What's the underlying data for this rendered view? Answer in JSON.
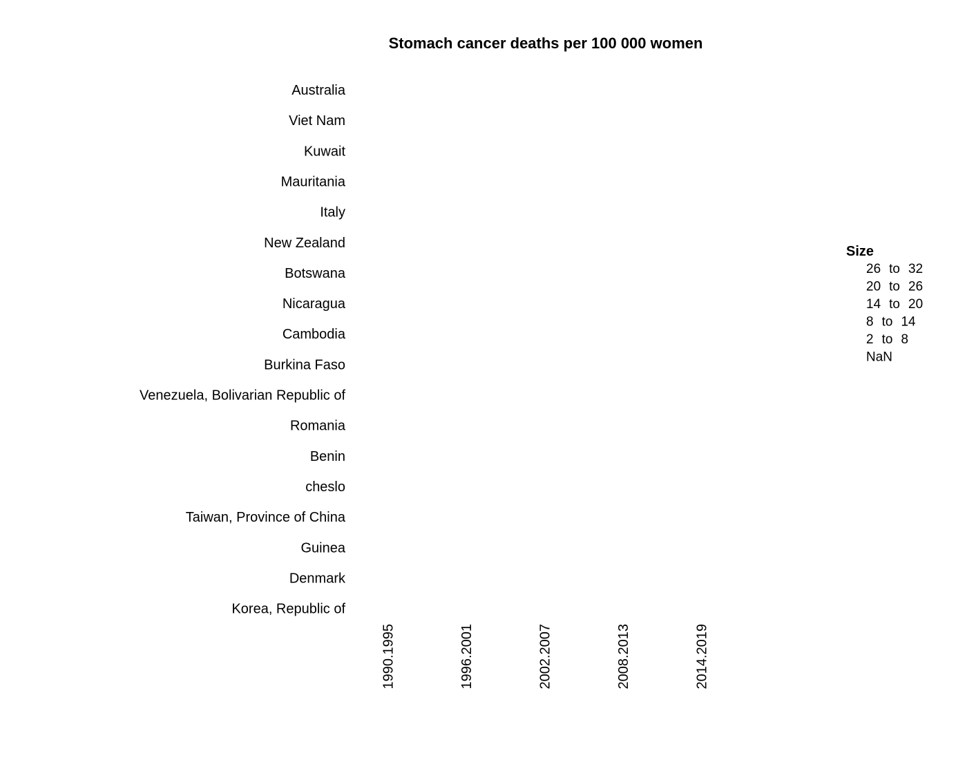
{
  "chart_data": {
    "type": "scatter",
    "title": "Stomach cancer deaths per 100 000 women",
    "xlabel": "",
    "ylabel": "",
    "rows": [
      "Australia",
      "Viet Nam",
      "Kuwait",
      "Mauritania",
      "Italy",
      "New Zealand",
      "Botswana",
      "Nicaragua",
      "Cambodia",
      "Burkina Faso",
      "Venezuela, Bolivarian Republic of",
      "Romania",
      "Benin",
      "cheslo",
      "Taiwan, Province of China",
      "Guinea",
      "Denmark",
      "Korea, Republic of"
    ],
    "columns": [
      "1990.1995",
      "1996.2001",
      "2002.2007",
      "2008.2013",
      "2014.2019"
    ],
    "points": [],
    "grid": false,
    "legend": {
      "title": "Size",
      "position": "right",
      "items": [
        {
          "low": "26",
          "sep": "to",
          "high": "32"
        },
        {
          "low": "20",
          "sep": "to",
          "high": "26"
        },
        {
          "low": "14",
          "sep": "to",
          "high": "20"
        },
        {
          "low": "8",
          "sep": "to",
          "high": "14"
        },
        {
          "low": "2",
          "sep": "to",
          "high": "8"
        },
        {
          "label": "NaN"
        }
      ]
    }
  }
}
